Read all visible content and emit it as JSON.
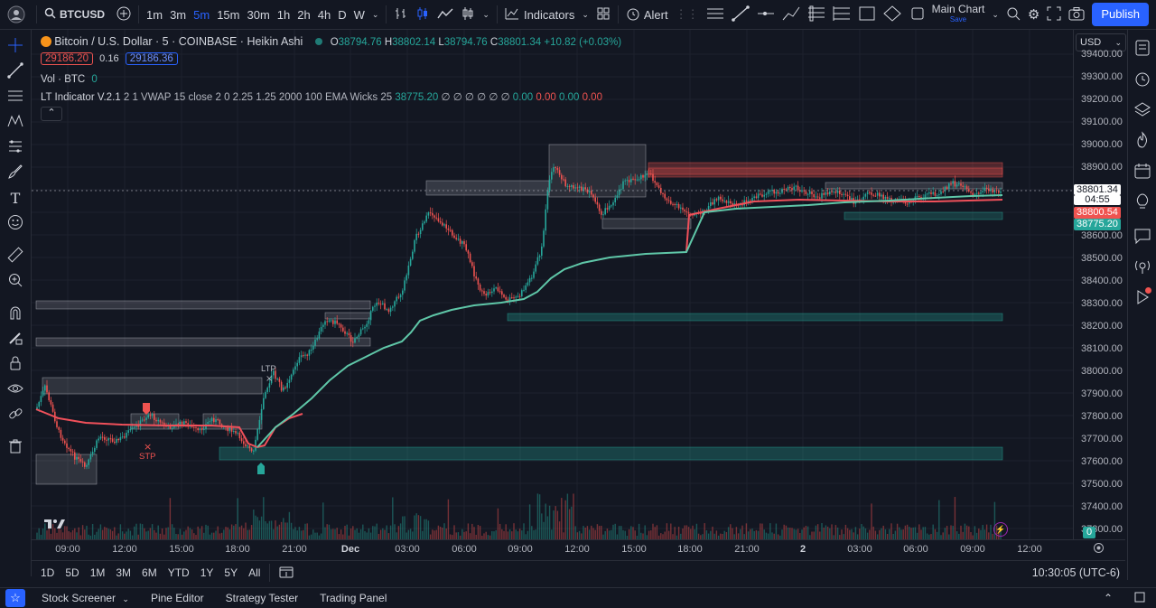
{
  "toolbar": {
    "symbol": "BTCUSD",
    "intervals": [
      "1m",
      "3m",
      "5m",
      "15m",
      "30m",
      "1h",
      "2h",
      "4h",
      "D",
      "W"
    ],
    "active_interval": "5m",
    "indicators_label": "Indicators",
    "alert_label": "Alert",
    "layout_name": "Main Chart",
    "layout_status": "Save",
    "publish_label": "Publish"
  },
  "legend": {
    "title": "Bitcoin / U.S. Dollar · 5 · COINBASE · Heikin Ashi",
    "o_label": "O",
    "o": "38794.76",
    "h_label": "H",
    "h": "38802.14",
    "l_label": "L",
    "l": "38794.76",
    "c_label": "C",
    "c": "38801.34",
    "change": "+10.82 (+0.03%)",
    "bid": "29186.20",
    "spread": "0.16",
    "ask": "29186.36",
    "vol_label": "Vol · BTC",
    "vol_value": "0",
    "indicator_name": "LT Indicator V.2.1",
    "indicator_params": "2 1 VWAP 15 close 2 0 2.25 1.25 2000 100 EMA Wicks 25",
    "indicator_value": "38775.20",
    "indicator_empties": "∅ ∅ ∅ ∅ ∅ ∅",
    "ind_vals": [
      "0.00",
      "0.00",
      "0.00",
      "0.00"
    ]
  },
  "price_axis": {
    "currency": "USD",
    "ticks": [
      "39400.00",
      "39300.00",
      "39200.00",
      "39100.00",
      "39000.00",
      "38900.00",
      "38600.00",
      "38500.00",
      "38400.00",
      "38300.00",
      "38200.00",
      "38100.00",
      "38000.00",
      "37900.00",
      "37800.00",
      "37700.00",
      "37600.00",
      "37500.00",
      "37400.00",
      "37300.00"
    ],
    "last_price": "38801.34",
    "countdown": "04:55",
    "red_label": "38800.54",
    "green_label": "38775.20",
    "vol_label": "0"
  },
  "time_axis": {
    "ticks": [
      "09:00",
      "12:00",
      "15:00",
      "18:00",
      "21:00",
      "Dec",
      "03:00",
      "06:00",
      "09:00",
      "12:00",
      "15:00",
      "18:00",
      "21:00",
      "2",
      "03:00",
      "06:00",
      "09:00",
      "12:00"
    ]
  },
  "markers": {
    "ltp": "LTP",
    "stp": "STP"
  },
  "range_bar": {
    "ranges": [
      "1D",
      "5D",
      "1M",
      "3M",
      "6M",
      "YTD",
      "1Y",
      "5Y",
      "All"
    ],
    "clock": "10:30:05 (UTC-6)"
  },
  "panels": [
    "Stock Screener",
    "Pine Editor",
    "Strategy Tester",
    "Trading Panel"
  ],
  "colors": {
    "up": "#26a69a",
    "down": "#ef5350",
    "accent": "#2962ff",
    "vwap": "#5fc7a8",
    "ema": "#f0505a"
  }
}
